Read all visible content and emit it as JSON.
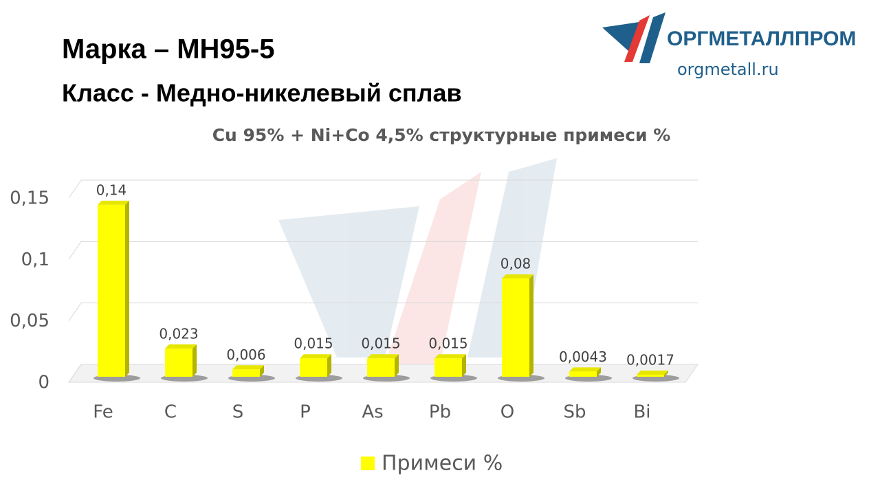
{
  "header": {
    "title": "Марка – МН95-5",
    "subtitle": "Класс -  Медно-никелевый сплав"
  },
  "logo": {
    "name": "ОРГМЕТАЛЛПРОМ",
    "site": "orgmetall.ru"
  },
  "chart_data": {
    "type": "bar",
    "title": "Cu 95% +  Ni+Co 4,5% структурные примеси %",
    "categories": [
      "Fe",
      "C",
      "S",
      "P",
      "As",
      "Pb",
      "O",
      "Sb",
      "Bi"
    ],
    "series": [
      {
        "name": "Примеси %",
        "color": "#ffff00",
        "values": [
          0.14,
          0.023,
          0.006,
          0.015,
          0.015,
          0.015,
          0.08,
          0.0043,
          0.0017
        ],
        "value_labels": [
          "0,14",
          "0,023",
          "0,006",
          "0,015",
          "0,015",
          "0,015",
          "0,08",
          "0,0043",
          "0,0017"
        ]
      }
    ],
    "ylim": [
      0,
      0.15
    ],
    "yticks": [
      0,
      {
        "value": 0.05,
        "label": "0,05"
      },
      {
        "value": 0.1,
        "label": "0,1"
      },
      {
        "value": 0.15,
        "label": "0,15"
      }
    ],
    "grid": true,
    "legend": "bottom"
  }
}
